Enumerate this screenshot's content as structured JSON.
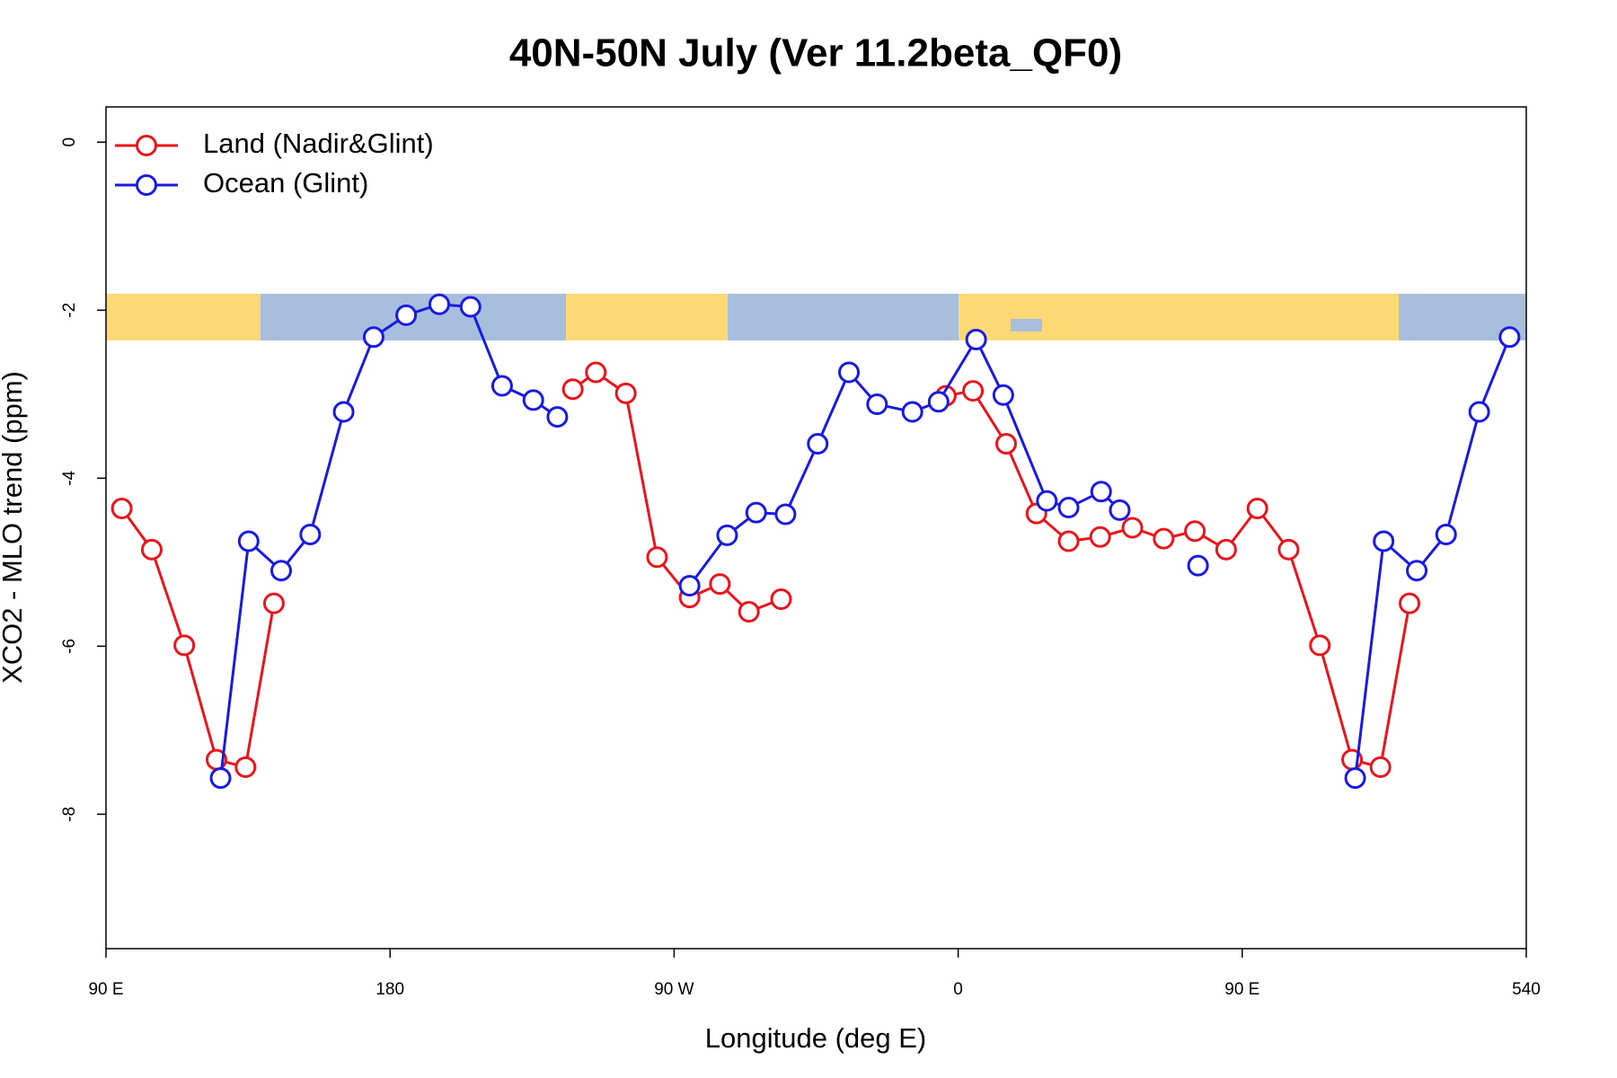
{
  "chart_data": {
    "type": "line",
    "title": "40N-50N July (Ver 11.2beta_QF0)",
    "x_label": "Longitude (deg E)",
    "y_label": "XCO2 - MLO trend (ppm)",
    "xlim": [
      90,
      540
    ],
    "ylim": [
      -9.6,
      0.42
    ],
    "xticks": [
      {
        "value": 90,
        "label": "90 E"
      },
      180,
      {
        "value": 270,
        "label": "90 W"
      },
      {
        "value": 360,
        "label": "0"
      },
      {
        "value": 450,
        "label": "90 E"
      },
      540
    ],
    "yticks": [
      0,
      -2,
      -4,
      -6,
      -8
    ],
    "legend": "topleft",
    "series": [
      {
        "name": "Land (Nadir&Glint)",
        "color": "#e8161c",
        "x": [
          95.0,
          104.5,
          114.8,
          125.0,
          134.2,
          143.2,
          null,
          237.9,
          245.2,
          254.7,
          264.6,
          274.9,
          284.5,
          293.7,
          303.9,
          null,
          356.1,
          364.7,
          375.2,
          384.8,
          395.0,
          405.0,
          415.2,
          425.1,
          435.0,
          444.9,
          454.8,
          464.7,
          474.6,
          484.8,
          493.8,
          503.0
        ],
        "values": [
          -4.36,
          -4.85,
          -5.99,
          -7.35,
          -7.44,
          -5.49,
          null,
          -2.94,
          -2.74,
          -2.99,
          -4.94,
          -5.42,
          -5.26,
          -5.59,
          -5.44,
          null,
          -3.02,
          -2.96,
          -3.59,
          -4.42,
          -4.75,
          -4.7,
          -4.59,
          -4.72,
          -4.63,
          -4.85,
          -4.36,
          -4.85,
          -5.99,
          -7.35,
          -7.44,
          -5.49
        ]
      },
      {
        "name": "Ocean (Glint)",
        "color": "#1a1ae0",
        "x": [
          126.3,
          135.2,
          145.5,
          154.7,
          165.3,
          174.8,
          185.1,
          195.6,
          205.5,
          215.5,
          225.4,
          233.0,
          null,
          274.9,
          286.8,
          296.0,
          305.3,
          315.5,
          325.4,
          334.3,
          345.5,
          353.8,
          365.7,
          374.3,
          388.1,
          395.0,
          405.3,
          411.2,
          null,
          436.0,
          null,
          485.8,
          494.8,
          505.3,
          514.6,
          525.1,
          534.7
        ],
        "values": [
          -7.57,
          -4.75,
          -5.1,
          -4.67,
          -3.21,
          -2.32,
          -2.06,
          -1.93,
          -1.96,
          -2.9,
          -3.07,
          -3.27,
          null,
          -5.28,
          -4.68,
          -4.41,
          -4.43,
          -3.59,
          -2.74,
          -3.12,
          -3.21,
          -3.09,
          -2.35,
          -3.01,
          -4.27,
          -4.35,
          -4.16,
          -4.38,
          null,
          -5.04,
          null,
          -7.57,
          -4.75,
          -5.1,
          -4.67,
          -3.21,
          -2.32
        ]
      }
    ]
  }
}
